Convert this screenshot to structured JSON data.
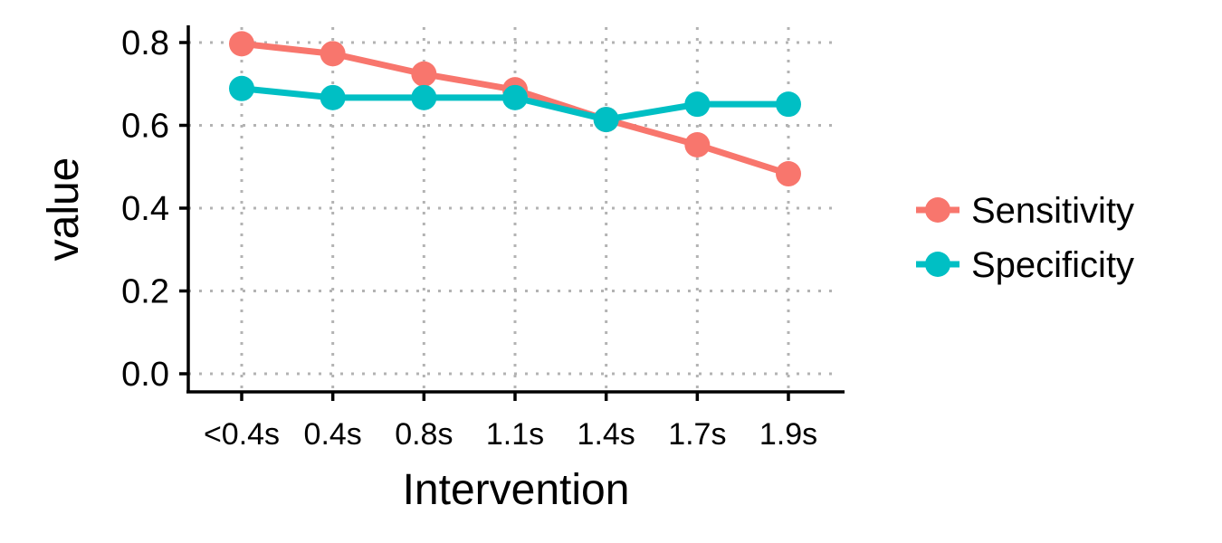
{
  "chart_data": {
    "type": "line",
    "categories": [
      "<0.4s",
      "0.4s",
      "0.8s",
      "1.1s",
      "1.4s",
      "1.7s",
      "1.9s"
    ],
    "series": [
      {
        "name": "Sensitivity",
        "color": "#F8766D",
        "values": [
          0.797,
          0.773,
          0.724,
          0.686,
          0.614,
          0.553,
          0.483
        ]
      },
      {
        "name": "Specificity",
        "color": "#00BFC4",
        "values": [
          0.689,
          0.667,
          0.667,
          0.667,
          0.614,
          0.651,
          0.651
        ]
      }
    ],
    "xlabel": "Intervention",
    "ylabel": "value",
    "ylim": [
      0,
      0.8
    ],
    "yticks": [
      "0.0",
      "0.2",
      "0.4",
      "0.6",
      "0.8"
    ],
    "grid": true,
    "legend_position": "right"
  }
}
